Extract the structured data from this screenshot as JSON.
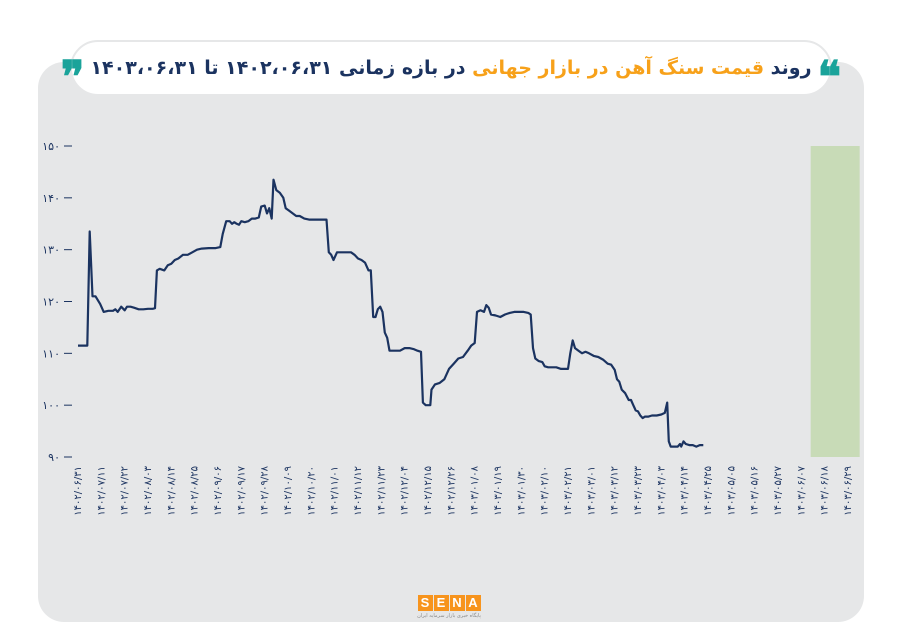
{
  "header": {
    "title_part1": "روند",
    "title_accent": "قیمت سنگ آهن در بازار جهانی",
    "title_part2": "در بازه زمانی ۱۴۰۲،۰۶،۳۱ تا ۱۴۰۳،۰۶،۳۱",
    "quote_open": "❝",
    "quote_close": "❞"
  },
  "logo": {
    "letters": [
      "S",
      "E",
      "N",
      "A"
    ],
    "tagline": "پایگاه خبری بازار سرمایه ایران"
  },
  "colors": {
    "line": "#1b3360",
    "highlight": "#c8dbb7",
    "accent": "#f7a11a",
    "quote": "#1aa39a",
    "panel": "#e6e7e8"
  },
  "chart_data": {
    "type": "line",
    "title": "",
    "xlabel": "",
    "ylabel": "",
    "ylim": [
      90,
      150
    ],
    "yticks": [
      "۹۰",
      "۱۰۰",
      "۱۱۰",
      "۱۲۰",
      "۱۳۰",
      "۱۴۰",
      "۱۵۰"
    ],
    "ytick_values": [
      90,
      100,
      110,
      120,
      130,
      140,
      150
    ],
    "x_labels": [
      "۱۴۰۲/۰۶/۳۱",
      "۱۴۰۲/۰۷/۱۱",
      "۱۴۰۲/۰۷/۲۲",
      "۱۴۰۲/۰۸/۰۳",
      "۱۴۰۲/۰۸/۱۴",
      "۱۴۰۲/۰۸/۲۵",
      "۱۴۰۲/۰۹/۰۶",
      "۱۴۰۲/۰۹/۱۷",
      "۱۴۰۲/۰۹/۲۸",
      "۱۴۰۲/۱۰/۰۹",
      "۱۴۰۲/۱۰/۲۰",
      "۱۴۰۲/۱۱/۰۱",
      "۱۴۰۲/۱۱/۱۲",
      "۱۴۰۲/۱۱/۲۳",
      "۱۴۰۲/۱۲/۰۴",
      "۱۴۰۲/۱۲/۱۵",
      "۱۴۰۲/۱۲/۲۶",
      "۱۴۰۳/۰۱/۰۸",
      "۱۴۰۳/۰۱/۱۹",
      "۱۴۰۳/۰۱/۳۰",
      "۱۴۰۳/۰۲/۱۰",
      "۱۴۰۳/۰۲/۲۱",
      "۱۴۰۳/۰۳/۰۱",
      "۱۴۰۳/۰۳/۱۲",
      "۱۴۰۳/۰۳/۲۳",
      "۱۴۰۳/۰۴/۰۳",
      "۱۴۰۳/۰۴/۱۴",
      "۱۴۰۳/۰۴/۲۵",
      "۱۴۰۳/۰۵/۰۵",
      "۱۴۰۳/۰۵/۱۶",
      "۱۴۰۳/۰۵/۲۷",
      "۱۴۰۳/۰۶/۰۷",
      "۱۴۰۳/۰۶/۱۸",
      "۱۴۰۳/۰۶/۲۹"
    ],
    "highlight_range": [
      31.4,
      33.5
    ],
    "grid": false,
    "series": [
      {
        "points": [
          [
            0.0,
            111.5
          ],
          [
            0.4,
            111.5
          ],
          [
            0.5,
            133.5
          ],
          [
            0.62,
            121.0
          ],
          [
            0.75,
            121.0
          ],
          [
            0.95,
            119.5
          ],
          [
            1.1,
            118.0
          ],
          [
            1.3,
            118.2
          ],
          [
            1.5,
            118.2
          ],
          [
            1.6,
            118.5
          ],
          [
            1.7,
            118.0
          ],
          [
            1.85,
            119.0
          ],
          [
            2.0,
            118.3
          ],
          [
            2.1,
            119.0
          ],
          [
            2.25,
            119.0
          ],
          [
            2.4,
            118.8
          ],
          [
            2.6,
            118.5
          ],
          [
            2.8,
            118.5
          ],
          [
            3.0,
            118.6
          ],
          [
            3.2,
            118.6
          ],
          [
            3.3,
            118.7
          ],
          [
            3.38,
            126.0
          ],
          [
            3.5,
            126.3
          ],
          [
            3.7,
            126.0
          ],
          [
            3.85,
            127.0
          ],
          [
            4.0,
            127.3
          ],
          [
            4.15,
            128.0
          ],
          [
            4.3,
            128.3
          ],
          [
            4.5,
            129.0
          ],
          [
            4.7,
            129.0
          ],
          [
            4.9,
            129.5
          ],
          [
            5.1,
            130.0
          ],
          [
            5.3,
            130.2
          ],
          [
            5.6,
            130.3
          ],
          [
            5.9,
            130.3
          ],
          [
            6.1,
            130.5
          ],
          [
            6.2,
            133.0
          ],
          [
            6.35,
            135.5
          ],
          [
            6.5,
            135.5
          ],
          [
            6.6,
            135.0
          ],
          [
            6.7,
            135.3
          ],
          [
            6.8,
            135.0
          ],
          [
            6.9,
            134.8
          ],
          [
            7.0,
            135.5
          ],
          [
            7.15,
            135.3
          ],
          [
            7.3,
            135.5
          ],
          [
            7.45,
            136.0
          ],
          [
            7.6,
            136.0
          ],
          [
            7.75,
            136.2
          ],
          [
            7.85,
            138.3
          ],
          [
            8.0,
            138.5
          ],
          [
            8.1,
            137.0
          ],
          [
            8.2,
            138.0
          ],
          [
            8.3,
            136.0
          ],
          [
            8.38,
            143.5
          ],
          [
            8.5,
            141.5
          ],
          [
            8.65,
            141.0
          ],
          [
            8.8,
            140.0
          ],
          [
            8.9,
            138.0
          ],
          [
            9.05,
            137.5
          ],
          [
            9.2,
            137.0
          ],
          [
            9.35,
            136.5
          ],
          [
            9.5,
            136.5
          ],
          [
            9.7,
            136.0
          ],
          [
            9.9,
            135.8
          ],
          [
            10.1,
            135.8
          ],
          [
            10.3,
            135.8
          ],
          [
            10.5,
            135.8
          ],
          [
            10.65,
            135.8
          ],
          [
            10.75,
            129.5
          ],
          [
            10.85,
            129.0
          ],
          [
            10.95,
            128.0
          ],
          [
            11.1,
            129.5
          ],
          [
            11.3,
            129.5
          ],
          [
            11.5,
            129.5
          ],
          [
            11.7,
            129.5
          ],
          [
            11.85,
            129.0
          ],
          [
            12.0,
            128.3
          ],
          [
            12.15,
            128.0
          ],
          [
            12.3,
            127.5
          ],
          [
            12.45,
            126.0
          ],
          [
            12.55,
            126.0
          ],
          [
            12.65,
            117.0
          ],
          [
            12.75,
            117.0
          ],
          [
            12.85,
            118.5
          ],
          [
            12.95,
            119.0
          ],
          [
            13.05,
            118.0
          ],
          [
            13.15,
            114.0
          ],
          [
            13.25,
            113.0
          ],
          [
            13.35,
            110.5
          ],
          [
            13.6,
            110.5
          ],
          [
            13.8,
            110.5
          ],
          [
            14.0,
            111.0
          ],
          [
            14.2,
            111.0
          ],
          [
            14.4,
            110.8
          ],
          [
            14.55,
            110.5
          ],
          [
            14.7,
            110.3
          ],
          [
            14.78,
            100.5
          ],
          [
            14.9,
            100.0
          ],
          [
            15.1,
            100.0
          ],
          [
            15.15,
            103.0
          ],
          [
            15.3,
            104.0
          ],
          [
            15.5,
            104.3
          ],
          [
            15.7,
            105.0
          ],
          [
            15.9,
            107.0
          ],
          [
            16.1,
            108.0
          ],
          [
            16.3,
            109.0
          ],
          [
            16.5,
            109.3
          ],
          [
            16.7,
            110.5
          ],
          [
            16.85,
            111.5
          ],
          [
            17.0,
            112.0
          ],
          [
            17.1,
            118.0
          ],
          [
            17.25,
            118.3
          ],
          [
            17.4,
            118.0
          ],
          [
            17.5,
            119.3
          ],
          [
            17.6,
            118.8
          ],
          [
            17.7,
            117.5
          ],
          [
            17.9,
            117.3
          ],
          [
            18.1,
            117.0
          ],
          [
            18.3,
            117.5
          ],
          [
            18.5,
            117.8
          ],
          [
            18.7,
            118.0
          ],
          [
            18.9,
            118.0
          ],
          [
            19.1,
            118.0
          ],
          [
            19.3,
            117.8
          ],
          [
            19.4,
            117.5
          ],
          [
            19.5,
            111.0
          ],
          [
            19.6,
            109.0
          ],
          [
            19.75,
            108.5
          ],
          [
            19.9,
            108.3
          ],
          [
            20.0,
            107.5
          ],
          [
            20.15,
            107.3
          ],
          [
            20.3,
            107.3
          ],
          [
            20.5,
            107.3
          ],
          [
            20.7,
            107.0
          ],
          [
            20.85,
            107.0
          ],
          [
            21.0,
            107.0
          ],
          [
            21.1,
            110.0
          ],
          [
            21.2,
            112.5
          ],
          [
            21.3,
            111.0
          ],
          [
            21.45,
            110.5
          ],
          [
            21.6,
            110.0
          ],
          [
            21.75,
            110.3
          ],
          [
            21.9,
            110.0
          ],
          [
            22.1,
            109.5
          ],
          [
            22.3,
            109.3
          ],
          [
            22.5,
            108.8
          ],
          [
            22.7,
            108.0
          ],
          [
            22.85,
            107.8
          ],
          [
            23.0,
            106.8
          ],
          [
            23.1,
            105.0
          ],
          [
            23.2,
            104.5
          ],
          [
            23.3,
            103.0
          ],
          [
            23.45,
            102.3
          ],
          [
            23.6,
            101.0
          ],
          [
            23.7,
            101.0
          ],
          [
            23.8,
            100.0
          ],
          [
            23.9,
            99.0
          ],
          [
            24.0,
            98.8
          ],
          [
            24.1,
            98.0
          ],
          [
            24.2,
            97.5
          ],
          [
            24.3,
            97.8
          ],
          [
            24.45,
            97.8
          ],
          [
            24.6,
            98.0
          ],
          [
            24.8,
            98.0
          ],
          [
            25.0,
            98.2
          ],
          [
            25.15,
            98.5
          ],
          [
            25.25,
            100.5
          ],
          [
            25.32,
            93.0
          ],
          [
            25.4,
            92.0
          ],
          [
            25.55,
            92.0
          ],
          [
            25.7,
            92.0
          ],
          [
            25.8,
            92.5
          ],
          [
            25.85,
            92.0
          ],
          [
            25.95,
            93.0
          ],
          [
            26.05,
            92.5
          ],
          [
            26.2,
            92.3
          ],
          [
            26.35,
            92.3
          ],
          [
            26.5,
            92.0
          ],
          [
            26.65,
            92.3
          ],
          [
            26.8,
            92.3
          ]
        ]
      }
    ]
  }
}
